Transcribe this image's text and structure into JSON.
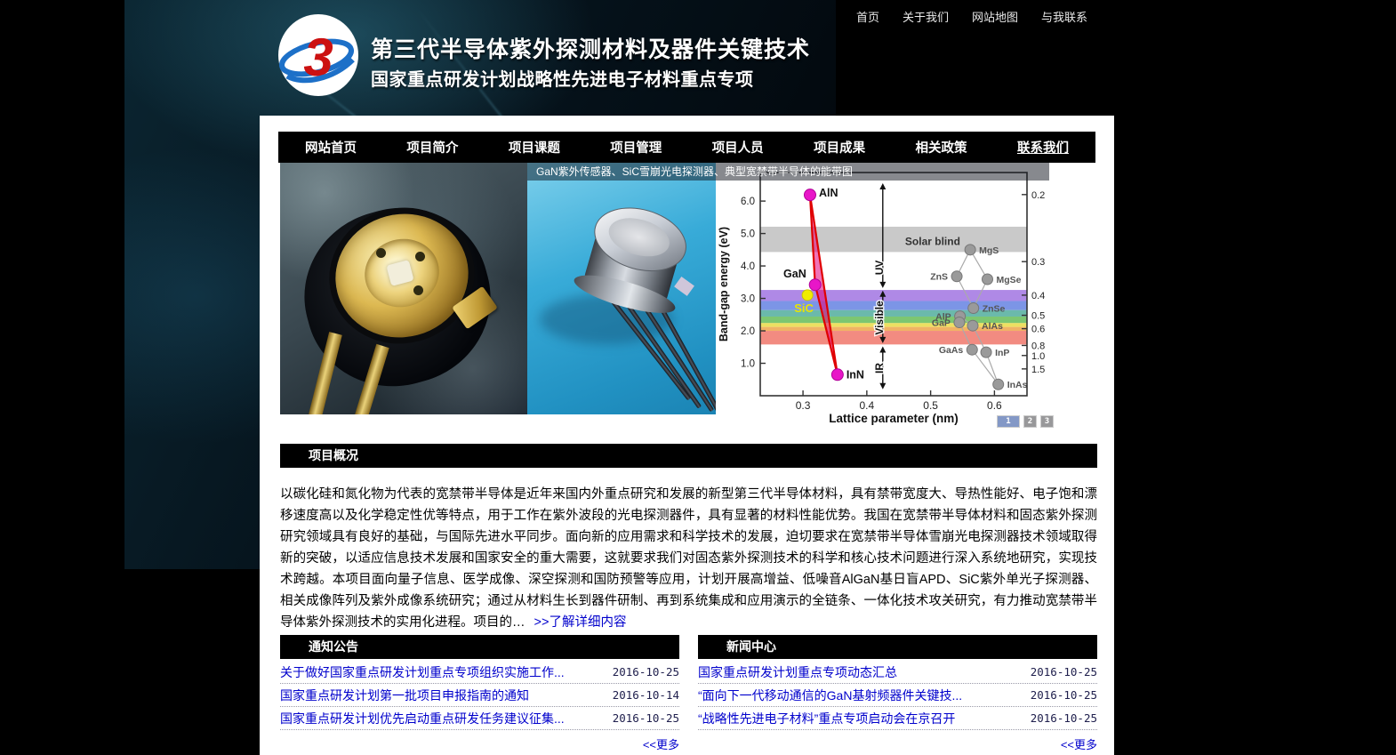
{
  "topbar": {
    "links": [
      "首页",
      "关于我们",
      "网站地图",
      "与我联系"
    ]
  },
  "header": {
    "logo_text": "3",
    "title": "第三代半导体紫外探测材料及器件关键技术",
    "subtitle": "国家重点研发计划战略性先进电子材料重点专项"
  },
  "nav": {
    "items": [
      "网站首页",
      "项目简介",
      "项目课题",
      "项目管理",
      "项目人员",
      "项目成果",
      "相关政策",
      "联系我们"
    ],
    "underlined_item": "联系我们"
  },
  "banner": {
    "caption": "GaN紫外传感器、SiC雪崩光电探测器、典型宽禁带半导体的能带图",
    "photo_left_alt": "GaN紫外传感器",
    "photo_mid_alt": "SiC雪崩光电探测器",
    "pagination": [
      "1",
      "2",
      "3"
    ],
    "active_page": "1"
  },
  "chart_data": {
    "type": "scatter",
    "title": "典型宽禁带半导体的能带图",
    "xlabel": "Lattice parameter (nm)",
    "ylabel": "Band-gap energy (eV)",
    "xlim": [
      0.233,
      0.651
    ],
    "ylim": [
      0,
      6.88
    ],
    "x_ticks": [
      0.3,
      0.4,
      0.5,
      0.6
    ],
    "y_ticks": [
      1.0,
      2.0,
      3.0,
      4.0,
      5.0,
      6.0
    ],
    "right_ticks_wavelength_um": [
      0.2,
      0.3,
      0.4,
      0.5,
      0.6,
      0.8,
      1.0,
      1.5
    ],
    "ev_per_um_constant": 1.24,
    "grid": false,
    "solar_blind_band": {
      "label": "Solar blind",
      "ev_range": [
        4.43,
        5.21
      ],
      "label_x": 0.46,
      "label_ev": 4.75
    },
    "region_axis_x": 0.425,
    "spectral_regions": [
      {
        "label": "UV",
        "ev_range": [
          3.32,
          6.55
        ],
        "label_ev": 3.95
      },
      {
        "label": "Visible",
        "ev_range": [
          1.62,
          3.24
        ],
        "label_ev": 2.4
      },
      {
        "label": "IR",
        "ev_range": [
          0.2,
          1.52
        ],
        "label_ev": 0.85
      }
    ],
    "visible_color_bands": [
      {
        "ev_range": [
          2.92,
          3.26
        ],
        "color": "#9b6ce0"
      },
      {
        "ev_range": [
          2.64,
          2.92
        ],
        "color": "#5b7ae0"
      },
      {
        "ev_range": [
          2.44,
          2.64
        ],
        "color": "#46a896"
      },
      {
        "ev_range": [
          2.24,
          2.44
        ],
        "color": "#5cb84e"
      },
      {
        "ev_range": [
          2.12,
          2.24
        ],
        "color": "#e8d83a"
      },
      {
        "ev_range": [
          2.0,
          2.12
        ],
        "color": "#eda03e"
      },
      {
        "ev_range": [
          1.58,
          2.0
        ],
        "color": "#ef6e62"
      }
    ],
    "nitride_series": {
      "fill_color": "#e4007c",
      "edge_color": "#e00000",
      "point_color": "#e816c8",
      "points": [
        {
          "label": "AlN",
          "x": 0.311,
          "y": 6.19,
          "label_side": "right",
          "label_dy": 2
        },
        {
          "label": "GaN",
          "x": 0.319,
          "y": 3.42,
          "label_side": "left",
          "label_dy": -8
        },
        {
          "label": "InN",
          "x": 0.354,
          "y": 0.65,
          "label_side": "right",
          "label_dy": 4
        }
      ]
    },
    "sic_point": {
      "label": "SiC",
      "x": 0.307,
      "y": 3.1,
      "color": "#f0ec00"
    },
    "compound_point_color": "#9a9a9a",
    "compound_points": [
      {
        "label": "MgS",
        "x": 0.562,
        "y": 4.5,
        "label_side": "right"
      },
      {
        "label": "ZnS",
        "x": 0.541,
        "y": 3.68,
        "label_side": "left"
      },
      {
        "label": "MgSe",
        "x": 0.589,
        "y": 3.59,
        "label_side": "right"
      },
      {
        "label": "ZnSe",
        "x": 0.567,
        "y": 2.7,
        "label_side": "right"
      },
      {
        "label": "AlP",
        "x": 0.546,
        "y": 2.45,
        "label_side": "left"
      },
      {
        "label": "GaP",
        "x": 0.545,
        "y": 2.26,
        "label_side": "left"
      },
      {
        "label": "AlAs",
        "x": 0.566,
        "y": 2.16,
        "label_side": "right"
      },
      {
        "label": "GaAs",
        "x": 0.565,
        "y": 1.42,
        "label_side": "left"
      },
      {
        "label": "InP",
        "x": 0.587,
        "y": 1.34,
        "label_side": "right"
      },
      {
        "label": "InAs",
        "x": 0.606,
        "y": 0.35,
        "label_side": "right"
      }
    ],
    "compound_connections": [
      [
        "ZnS",
        "MgS"
      ],
      [
        "MgS",
        "MgSe"
      ],
      [
        "ZnS",
        "ZnSe"
      ],
      [
        "MgSe",
        "ZnSe"
      ],
      [
        "AlP",
        "AlAs"
      ],
      [
        "GaP",
        "GaAs"
      ],
      [
        "AlAs",
        "InP"
      ],
      [
        "GaAs",
        "InAs"
      ],
      [
        "InP",
        "InAs"
      ]
    ]
  },
  "overview": {
    "heading": "项目概况",
    "paragraph": "以碳化硅和氮化物为代表的宽禁带半导体是近年来国内外重点研究和发展的新型第三代半导体材料，具有禁带宽度大、导热性能好、电子饱和漂移速度高以及化学稳定性优等特点，用于工作在紫外波段的光电探测器件，具有显著的材料性能优势。我国在宽禁带半导体材料和固态紫外探测研究领域具有良好的基础，与国际先进水平同步。面向新的应用需求和科学技术的发展，迫切要求在宽禁带半导体雪崩光电探测器技术领域取得新的突破，以适应信息技术发展和国家安全的重大需要，这就要求我们对固态紫外探测技术的科学和核心技术问题进行深入系统地研究，实现技术跨越。本项目面向量子信息、医学成像、深空探测和国防预警等应用，计划开展高增益、低噪音AlGaN基日盲APD、SiC紫外单光子探测器、相关成像阵列及紫外成像系统研究；通过从材料生长到器件研制、再到系统集成和应用演示的全链条、一体化技术攻关研究，有力推动宽禁带半导体紫外探测技术的实用化进程。项目的…",
    "more_link": ">>了解详细内容"
  },
  "notices": {
    "heading": "通知公告",
    "items": [
      {
        "title": "关于做好国家重点研发计划重点专项组织实施工作...",
        "date": "2016-10-25"
      },
      {
        "title": "国家重点研发计划第一批项目申报指南的通知",
        "date": "2016-10-14"
      },
      {
        "title": "国家重点研发计划优先启动重点研发任务建议征集...",
        "date": "2016-10-25"
      }
    ],
    "more": "<<更多"
  },
  "news": {
    "heading": "新闻中心",
    "items": [
      {
        "title": "国家重点研发计划重点专项动态汇总",
        "date": "2016-10-25"
      },
      {
        "title": "“面向下一代移动通信的GaN基射频器件关键技...",
        "date": "2016-10-25"
      },
      {
        "title": "“战略性先进电子材料”重点专项启动会在京召开",
        "date": "2016-10-25"
      }
    ],
    "more": "<<更多"
  },
  "colors": {
    "link": "#0000cc",
    "date_text": "#20204e",
    "nav_bg": "#000000",
    "logo_numeral": "#cc1111",
    "logo_swoosh": "#1d70c8",
    "pager_active_bg": "#8398c6",
    "pager_bg": "#98989a",
    "photo_mid_bg": "#2fa8d8"
  }
}
